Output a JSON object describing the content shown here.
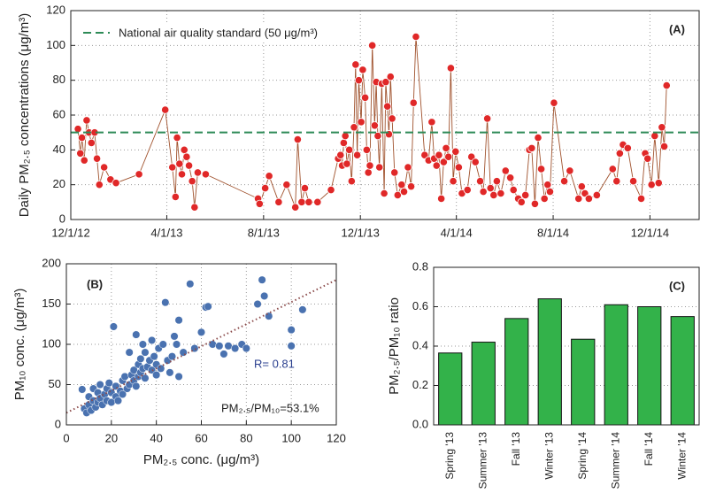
{
  "chart_data": [
    {
      "type": "line",
      "ylabel": "Daily PM₂.₅ concentrations (μg/m³)",
      "annotations": [
        "(A)"
      ],
      "threshold": {
        "name": "National air quality standard (50 μg/m³)",
        "value": 50,
        "color": "#2e8b57"
      },
      "xlim": [
        "2012-12-01",
        "2015-02-01"
      ],
      "xticks": [
        {
          "value": "2012-12-01",
          "label": "12/1/12"
        },
        {
          "value": "2013-04-01",
          "label": "4/1/13"
        },
        {
          "value": "2013-08-01",
          "label": "8/1/13"
        },
        {
          "value": "2013-12-01",
          "label": "12/1/13"
        },
        {
          "value": "2014-04-01",
          "label": "4/1/14"
        },
        {
          "value": "2014-08-01",
          "label": "8/1/14"
        },
        {
          "value": "2014-12-01",
          "label": "12/1/14"
        }
      ],
      "ylim": [
        0,
        120
      ],
      "yticks": [
        0,
        20,
        40,
        60,
        80,
        100,
        120
      ],
      "grid": true,
      "series": [
        {
          "color": "#e02828",
          "line_color": "#a0522d",
          "x": [
            "2012-12-10",
            "2012-12-13",
            "2012-12-15",
            "2012-12-18",
            "2012-12-21",
            "2012-12-24",
            "2012-12-27",
            "2012-12-31",
            "2013-01-03",
            "2013-01-06",
            "2013-01-12",
            "2013-01-20",
            "2013-01-27",
            "2013-02-25",
            "2013-03-30",
            "2013-04-08",
            "2013-04-12",
            "2013-04-14",
            "2013-04-17",
            "2013-04-20",
            "2013-04-23",
            "2013-04-26",
            "2013-04-29",
            "2013-05-03",
            "2013-05-06",
            "2013-05-10",
            "2013-05-20",
            "2013-07-25",
            "2013-07-27",
            "2013-08-03",
            "2013-08-08",
            "2013-08-20",
            "2013-08-30",
            "2013-09-10",
            "2013-09-13",
            "2013-09-18",
            "2013-09-22",
            "2013-09-27",
            "2013-10-08",
            "2013-10-25",
            "2013-11-03",
            "2013-11-06",
            "2013-11-08",
            "2013-11-10",
            "2013-11-12",
            "2013-11-14",
            "2013-11-17",
            "2013-11-20",
            "2013-11-23",
            "2013-11-25",
            "2013-11-27",
            "2013-11-29",
            "2013-12-02",
            "2013-12-04",
            "2013-12-07",
            "2013-12-09",
            "2013-12-11",
            "2013-12-13",
            "2013-12-16",
            "2013-12-19",
            "2013-12-21",
            "2013-12-23",
            "2013-12-25",
            "2013-12-28",
            "2013-12-31",
            "2014-01-02",
            "2014-01-04",
            "2014-01-06",
            "2014-01-08",
            "2014-01-10",
            "2014-01-13",
            "2014-01-17",
            "2014-01-22",
            "2014-01-25",
            "2014-01-30",
            "2014-02-03",
            "2014-02-06",
            "2014-02-09",
            "2014-02-20",
            "2014-02-25",
            "2014-03-01",
            "2014-03-04",
            "2014-03-07",
            "2014-03-10",
            "2014-03-13",
            "2014-03-16",
            "2014-03-19",
            "2014-03-22",
            "2014-03-25",
            "2014-03-28",
            "2014-03-31",
            "2014-04-04",
            "2014-04-08",
            "2014-04-15",
            "2014-04-20",
            "2014-04-25",
            "2014-05-01",
            "2014-05-05",
            "2014-05-10",
            "2014-05-14",
            "2014-05-18",
            "2014-05-22",
            "2014-05-27",
            "2014-06-02",
            "2014-06-08",
            "2014-06-12",
            "2014-06-18",
            "2014-06-22",
            "2014-06-27",
            "2014-07-02",
            "2014-07-05",
            "2014-07-09",
            "2014-07-13",
            "2014-07-17",
            "2014-07-21",
            "2014-07-25",
            "2014-07-28",
            "2014-08-02",
            "2014-08-15",
            "2014-08-22",
            "2014-09-02",
            "2014-09-06",
            "2014-09-10",
            "2014-09-15",
            "2014-09-25",
            "2014-10-15",
            "2014-10-20",
            "2014-10-24",
            "2014-10-28",
            "2014-11-03",
            "2014-11-10",
            "2014-11-20",
            "2014-11-25",
            "2014-11-28",
            "2014-12-03",
            "2014-12-07",
            "2014-12-12",
            "2014-12-16",
            "2014-12-19",
            "2014-12-22"
          ],
          "values": [
            52,
            38,
            47,
            34,
            57,
            50,
            44,
            50,
            35,
            20,
            30,
            23,
            21,
            26,
            63,
            30,
            13,
            47,
            32,
            26,
            40,
            36,
            31,
            22,
            7,
            27,
            26,
            12,
            9,
            18,
            25,
            10,
            20,
            7,
            46,
            10,
            18,
            10,
            10,
            17,
            35,
            37,
            31,
            44,
            48,
            32,
            40,
            22,
            53,
            89,
            37,
            80,
            56,
            86,
            70,
            40,
            27,
            31,
            100,
            54,
            79,
            48,
            30,
            78,
            15,
            79,
            65,
            49,
            82,
            58,
            27,
            14,
            20,
            16,
            30,
            19,
            67,
            105,
            37,
            34,
            56,
            35,
            31,
            37,
            12,
            33,
            41,
            36,
            87,
            22,
            39,
            30,
            15,
            17,
            36,
            33,
            22,
            16,
            58,
            18,
            14,
            22,
            15,
            28,
            24,
            17,
            12,
            10,
            14,
            40,
            41,
            9,
            47,
            29,
            12,
            20,
            16,
            67,
            22,
            28,
            12,
            19,
            15,
            12,
            14,
            29,
            22,
            38,
            43,
            41,
            22,
            12,
            38,
            35,
            20,
            48,
            21,
            53,
            42,
            77
          ]
        }
      ]
    },
    {
      "type": "scatter",
      "xlabel": "PM₂.₅ conc. (μg/m³)",
      "ylabel": "PM₁₀ conc. (μg/m³)",
      "annotations": [
        "(B)",
        "R= 0.81",
        "PM₂.₅/PM₁₀=53.1%"
      ],
      "xlim": [
        0,
        120
      ],
      "xticks": [
        0,
        20,
        40,
        60,
        80,
        100,
        120
      ],
      "ylim": [
        0,
        200
      ],
      "yticks": [
        0,
        50,
        100,
        150,
        200
      ],
      "grid": true,
      "trendline": {
        "x": [
          0,
          120
        ],
        "y": [
          15,
          180
        ],
        "color": "#8b4a4a"
      },
      "series": [
        {
          "color": "#4a72b0",
          "x": [
            7,
            8,
            9,
            10,
            10,
            11,
            12,
            12,
            13,
            14,
            14,
            15,
            15,
            16,
            17,
            18,
            18,
            19,
            20,
            20,
            21,
            22,
            22,
            23,
            24,
            25,
            25,
            26,
            27,
            28,
            28,
            29,
            30,
            30,
            31,
            31,
            32,
            32,
            33,
            33,
            34,
            34,
            35,
            35,
            36,
            37,
            38,
            38,
            39,
            40,
            40,
            41,
            42,
            43,
            44,
            45,
            46,
            47,
            48,
            49,
            50,
            50,
            52,
            55,
            57,
            60,
            62,
            63,
            65,
            68,
            70,
            72,
            75,
            78,
            80,
            85,
            87,
            88,
            90,
            100,
            100,
            105
          ],
          "y": [
            44,
            20,
            15,
            25,
            35,
            18,
            30,
            45,
            22,
            28,
            40,
            50,
            33,
            25,
            38,
            45,
            30,
            52,
            40,
            28,
            122,
            48,
            35,
            30,
            42,
            55,
            38,
            60,
            45,
            50,
            90,
            62,
            68,
            55,
            112,
            48,
            75,
            60,
            82,
            65,
            70,
            100,
            90,
            58,
            72,
            80,
            68,
            105,
            85,
            62,
            75,
            95,
            70,
            100,
            152,
            80,
            65,
            85,
            110,
            100,
            130,
            60,
            90,
            175,
            95,
            115,
            146,
            147,
            100,
            98,
            88,
            98,
            95,
            100,
            95,
            150,
            180,
            160,
            135,
            118,
            98,
            143
          ]
        }
      ]
    },
    {
      "type": "bar",
      "ylabel": "PM₂.₅/PM₁₀ ratio",
      "annotations": [
        "(C)"
      ],
      "categories": [
        "Spring '13",
        "Summer '13",
        "Fall '13",
        "Winter '13",
        "Spring '14",
        "Summer '14",
        "Fall '14",
        "Winter '14"
      ],
      "values": [
        0.365,
        0.42,
        0.54,
        0.64,
        0.435,
        0.61,
        0.6,
        0.55
      ],
      "color": "#33b24a",
      "ylim": [
        0,
        0.8
      ],
      "yticks": [
        {
          "value": 0,
          "label": "0.0"
        },
        0.2,
        0.4,
        0.6,
        0.8
      ],
      "grid": true
    }
  ]
}
